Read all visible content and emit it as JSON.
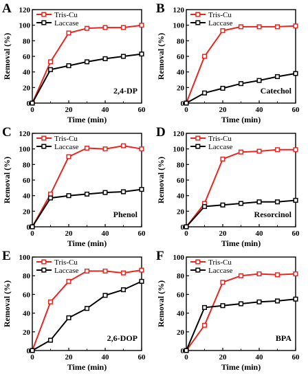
{
  "colors": {
    "tris": "#e8251f",
    "laccase": "#000000",
    "axis": "#000000"
  },
  "chart_data": [
    {
      "type": "line",
      "panel": "A",
      "annotation": "2,4-DP",
      "xlabel": "Time (min)",
      "ylabel": "Removal (%)",
      "xlim": [
        0,
        60
      ],
      "ylim": [
        0,
        120
      ],
      "xticks": [
        0,
        20,
        40,
        60
      ],
      "yticks": [
        0,
        20,
        40,
        60,
        80,
        100,
        120
      ],
      "legend": "top-left",
      "series": [
        {
          "name": "Tris-Cu",
          "x": [
            0,
            10,
            20,
            30,
            40,
            50,
            60
          ],
          "y": [
            0,
            53,
            90,
            96,
            97,
            97,
            100
          ]
        },
        {
          "name": "Laccase",
          "x": [
            0,
            10,
            20,
            30,
            40,
            50,
            60
          ],
          "y": [
            0,
            43,
            48,
            53,
            57,
            60,
            63
          ]
        }
      ]
    },
    {
      "type": "line",
      "panel": "B",
      "annotation": "Catechol",
      "xlabel": "Time (min)",
      "ylabel": "Removal (%)",
      "xlim": [
        0,
        60
      ],
      "ylim": [
        0,
        120
      ],
      "xticks": [
        0,
        20,
        40,
        60
      ],
      "yticks": [
        0,
        20,
        40,
        60,
        80,
        100,
        120
      ],
      "legend": "top-left",
      "series": [
        {
          "name": "Tris-Cu",
          "x": [
            0,
            10,
            20,
            30,
            40,
            50,
            60
          ],
          "y": [
            0,
            60,
            93,
            98,
            98,
            98,
            99
          ]
        },
        {
          "name": "Laccase",
          "x": [
            0,
            10,
            20,
            30,
            40,
            50,
            60
          ],
          "y": [
            0,
            13,
            19,
            25,
            29,
            34,
            38
          ]
        }
      ]
    },
    {
      "type": "line",
      "panel": "C",
      "annotation": "Phenol",
      "xlabel": "Time (min)",
      "ylabel": "Removal (%)",
      "xlim": [
        0,
        60
      ],
      "ylim": [
        0,
        120
      ],
      "xticks": [
        0,
        20,
        40,
        60
      ],
      "yticks": [
        0,
        20,
        40,
        60,
        80,
        100,
        120
      ],
      "legend": "top-left",
      "series": [
        {
          "name": "Tris-Cu",
          "x": [
            0,
            10,
            20,
            30,
            40,
            50,
            60
          ],
          "y": [
            0,
            42,
            90,
            101,
            100,
            104,
            100
          ]
        },
        {
          "name": "Laccase",
          "x": [
            0,
            10,
            20,
            30,
            40,
            50,
            60
          ],
          "y": [
            0,
            37,
            40,
            42,
            44,
            45,
            48
          ]
        }
      ]
    },
    {
      "type": "line",
      "panel": "D",
      "annotation": "Resorcinol",
      "xlabel": "Time (min)",
      "ylabel": "Removal (%)",
      "xlim": [
        0,
        60
      ],
      "ylim": [
        0,
        120
      ],
      "xticks": [
        0,
        20,
        40,
        60
      ],
      "yticks": [
        0,
        20,
        40,
        60,
        80,
        100,
        120
      ],
      "legend": "top-left",
      "series": [
        {
          "name": "Tris-Cu",
          "x": [
            0,
            10,
            20,
            30,
            40,
            50,
            60
          ],
          "y": [
            0,
            30,
            87,
            96,
            97,
            99,
            99
          ]
        },
        {
          "name": "Laccase",
          "x": [
            0,
            10,
            20,
            30,
            40,
            50,
            60
          ],
          "y": [
            0,
            26,
            28,
            30,
            32,
            32,
            34
          ]
        }
      ]
    },
    {
      "type": "line",
      "panel": "E",
      "annotation": "2,6-DOP",
      "xlabel": "Time (min)",
      "ylabel": "Removal (%)",
      "xlim": [
        0,
        60
      ],
      "ylim": [
        0,
        100
      ],
      "xticks": [
        0,
        20,
        40,
        60
      ],
      "yticks": [
        0,
        20,
        40,
        60,
        80,
        100
      ],
      "legend": "top-left",
      "series": [
        {
          "name": "Tris-Cu",
          "x": [
            0,
            10,
            20,
            30,
            40,
            50,
            60
          ],
          "y": [
            0,
            52,
            74,
            85,
            85,
            83,
            86
          ]
        },
        {
          "name": "Laccase",
          "x": [
            0,
            10,
            20,
            30,
            40,
            50,
            60
          ],
          "y": [
            0,
            11,
            35,
            45,
            59,
            65,
            74
          ]
        }
      ]
    },
    {
      "type": "line",
      "panel": "F",
      "annotation": "BPA",
      "xlabel": "Time (min)",
      "ylabel": "Removal (%)",
      "xlim": [
        0,
        60
      ],
      "ylim": [
        0,
        100
      ],
      "xticks": [
        0,
        20,
        40,
        60
      ],
      "yticks": [
        0,
        20,
        40,
        60,
        80,
        100
      ],
      "legend": "top-left",
      "series": [
        {
          "name": "Tris-Cu",
          "x": [
            0,
            10,
            20,
            30,
            40,
            50,
            60
          ],
          "y": [
            0,
            27,
            73,
            80,
            82,
            81,
            82
          ]
        },
        {
          "name": "Laccase",
          "x": [
            0,
            10,
            20,
            30,
            40,
            50,
            60
          ],
          "y": [
            0,
            46,
            48,
            50,
            52,
            53,
            55
          ]
        }
      ]
    }
  ]
}
